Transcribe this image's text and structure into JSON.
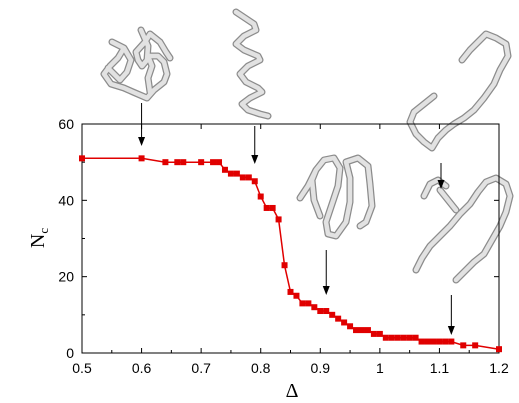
{
  "chart_data": {
    "type": "line",
    "title": "",
    "xlabel": "Δ",
    "ylabel": {
      "main": "N",
      "sub": "c"
    },
    "xlim": [
      0.5,
      1.2
    ],
    "ylim": [
      0,
      60
    ],
    "x_ticks": [
      "0.5",
      "0.6",
      "0.7",
      "0.8",
      "0.9",
      "1",
      "1.1",
      "1.2"
    ],
    "y_ticks": [
      "0",
      "20",
      "40",
      "60"
    ],
    "grid": false,
    "colors": {
      "series": "#e00000",
      "axis": "#000000",
      "annotation": "#000000",
      "structure": "#bdbdbd"
    },
    "series": [
      {
        "x": [
          0.5,
          0.6,
          0.64,
          0.66,
          0.67,
          0.7,
          0.72,
          0.73,
          0.74,
          0.75,
          0.76,
          0.77,
          0.78,
          0.79,
          0.8,
          0.81,
          0.82,
          0.83,
          0.84,
          0.85,
          0.86,
          0.87,
          0.88,
          0.89,
          0.9,
          0.91,
          0.92,
          0.93,
          0.94,
          0.95,
          0.96,
          0.97,
          0.98,
          0.99,
          1.0,
          1.01,
          1.02,
          1.03,
          1.04,
          1.05,
          1.06,
          1.07,
          1.08,
          1.09,
          1.1,
          1.11,
          1.12,
          1.14,
          1.16,
          1.2
        ],
        "values": [
          51,
          51,
          50,
          50,
          50,
          50,
          50,
          50,
          48,
          47,
          47,
          46,
          46,
          45,
          41,
          38,
          38,
          35,
          23,
          16,
          15,
          13,
          13,
          12,
          11,
          11,
          10,
          9,
          8,
          7,
          6,
          6,
          6,
          5,
          5,
          4,
          4,
          4,
          4,
          4,
          4,
          3,
          3,
          3,
          3,
          3,
          3,
          2,
          2,
          1
        ]
      }
    ],
    "annotations": [
      {
        "x": 0.6,
        "structure": "compact-globule"
      },
      {
        "x": 0.79,
        "structure": "helix"
      },
      {
        "x": 0.91,
        "structure": "hairpin"
      },
      {
        "x": 1.12,
        "structure": "double-helix-pair"
      }
    ]
  }
}
